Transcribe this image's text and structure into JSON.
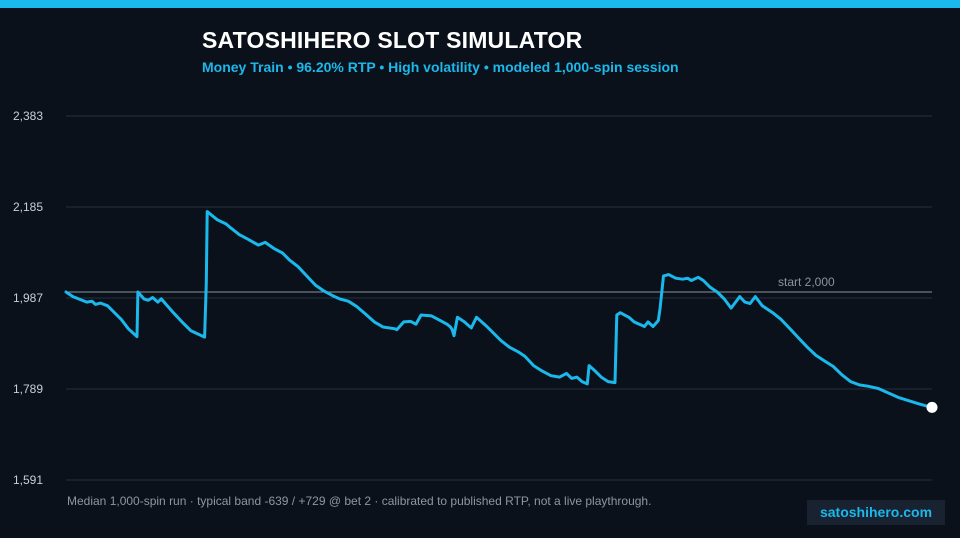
{
  "header": {
    "title": "SATOSHIHERO SLOT SIMULATOR",
    "subtitle": "Money Train  •  96.20% RTP  •  High volatility  •  modeled 1,000-spin session"
  },
  "footer": {
    "note": "Median 1,000-spin run  ·  typical band -639 / +729 @ bet 2  ·  calibrated to published RTP, not a live playthrough.",
    "brand": "satoshihero.com"
  },
  "colors": {
    "accent": "#1bb8ec",
    "background": "#0b111a",
    "grid": "#253040",
    "tick_label": "#c9ced6",
    "reference_line": "#8a939f",
    "endpoint": "#ffffff"
  },
  "chart_data": {
    "type": "line",
    "title": "SATOSHIHERO SLOT SIMULATOR",
    "xlabel": "",
    "ylabel": "",
    "xlim": [
      0,
      1000
    ],
    "ylim": [
      1591,
      2383
    ],
    "yticks": [
      1591,
      1789,
      1987,
      2185,
      2383
    ],
    "ytick_labels": [
      "1,591",
      "1,789",
      "1,987",
      "2,185",
      "2,383"
    ],
    "grid": true,
    "reference": {
      "value": 2000,
      "label": "start 2,000"
    },
    "series": [
      {
        "points": [
          [
            0,
            2000
          ],
          [
            8,
            1990
          ],
          [
            16,
            1984
          ],
          [
            24,
            1978
          ],
          [
            30,
            1980
          ],
          [
            34,
            1973
          ],
          [
            40,
            1976
          ],
          [
            48,
            1970
          ],
          [
            56,
            1955
          ],
          [
            64,
            1940
          ],
          [
            72,
            1920
          ],
          [
            82,
            1903
          ],
          [
            83,
            2000
          ],
          [
            90,
            1985
          ],
          [
            95,
            1982
          ],
          [
            100,
            1988
          ],
          [
            106,
            1978
          ],
          [
            110,
            1985
          ],
          [
            116,
            1972
          ],
          [
            124,
            1955
          ],
          [
            134,
            1935
          ],
          [
            144,
            1916
          ],
          [
            160,
            1902
          ],
          [
            162,
            2020
          ],
          [
            163,
            2175
          ],
          [
            175,
            2157
          ],
          [
            185,
            2148
          ],
          [
            190,
            2140
          ],
          [
            200,
            2125
          ],
          [
            210,
            2115
          ],
          [
            222,
            2102
          ],
          [
            230,
            2108
          ],
          [
            240,
            2095
          ],
          [
            250,
            2085
          ],
          [
            258,
            2070
          ],
          [
            268,
            2055
          ],
          [
            278,
            2035
          ],
          [
            288,
            2015
          ],
          [
            298,
            2002
          ],
          [
            308,
            1992
          ],
          [
            316,
            1985
          ],
          [
            326,
            1980
          ],
          [
            336,
            1968
          ],
          [
            346,
            1952
          ],
          [
            356,
            1935
          ],
          [
            366,
            1924
          ],
          [
            380,
            1920
          ],
          [
            382,
            1918
          ],
          [
            390,
            1935
          ],
          [
            398,
            1936
          ],
          [
            404,
            1930
          ],
          [
            410,
            1950
          ],
          [
            422,
            1948
          ],
          [
            430,
            1940
          ],
          [
            440,
            1930
          ],
          [
            444,
            1924
          ],
          [
            446,
            1918
          ],
          [
            448,
            1905
          ],
          [
            452,
            1945
          ],
          [
            460,
            1935
          ],
          [
            466,
            1925
          ],
          [
            468,
            1922
          ],
          [
            474,
            1945
          ],
          [
            480,
            1935
          ],
          [
            486,
            1925
          ],
          [
            494,
            1910
          ],
          [
            502,
            1895
          ],
          [
            512,
            1880
          ],
          [
            522,
            1870
          ],
          [
            530,
            1860
          ],
          [
            540,
            1840
          ],
          [
            550,
            1828
          ],
          [
            560,
            1818
          ],
          [
            570,
            1815
          ],
          [
            578,
            1823
          ],
          [
            584,
            1812
          ],
          [
            590,
            1815
          ],
          [
            596,
            1805
          ],
          [
            602,
            1800
          ],
          [
            604,
            1840
          ],
          [
            610,
            1830
          ],
          [
            618,
            1815
          ],
          [
            626,
            1805
          ],
          [
            634,
            1803
          ],
          [
            636,
            1950
          ],
          [
            640,
            1955
          ],
          [
            650,
            1945
          ],
          [
            656,
            1935
          ],
          [
            668,
            1925
          ],
          [
            672,
            1935
          ],
          [
            678,
            1925
          ],
          [
            684,
            1938
          ],
          [
            686,
            1965
          ],
          [
            690,
            2035
          ],
          [
            696,
            2038
          ],
          [
            704,
            2030
          ],
          [
            712,
            2028
          ],
          [
            718,
            2030
          ],
          [
            722,
            2025
          ],
          [
            730,
            2032
          ],
          [
            736,
            2025
          ],
          [
            744,
            2010
          ],
          [
            752,
            2000
          ],
          [
            760,
            1985
          ],
          [
            768,
            1965
          ],
          [
            778,
            1990
          ],
          [
            784,
            1978
          ],
          [
            790,
            1975
          ],
          [
            796,
            1990
          ],
          [
            804,
            1970
          ],
          [
            816,
            1955
          ],
          [
            826,
            1940
          ],
          [
            836,
            1920
          ],
          [
            846,
            1900
          ],
          [
            856,
            1880
          ],
          [
            866,
            1862
          ],
          [
            876,
            1850
          ],
          [
            886,
            1838
          ],
          [
            896,
            1820
          ],
          [
            906,
            1805
          ],
          [
            916,
            1798
          ],
          [
            926,
            1795
          ],
          [
            938,
            1790
          ],
          [
            950,
            1780
          ],
          [
            962,
            1770
          ],
          [
            974,
            1763
          ],
          [
            986,
            1756
          ],
          [
            1000,
            1749
          ]
        ]
      }
    ]
  }
}
